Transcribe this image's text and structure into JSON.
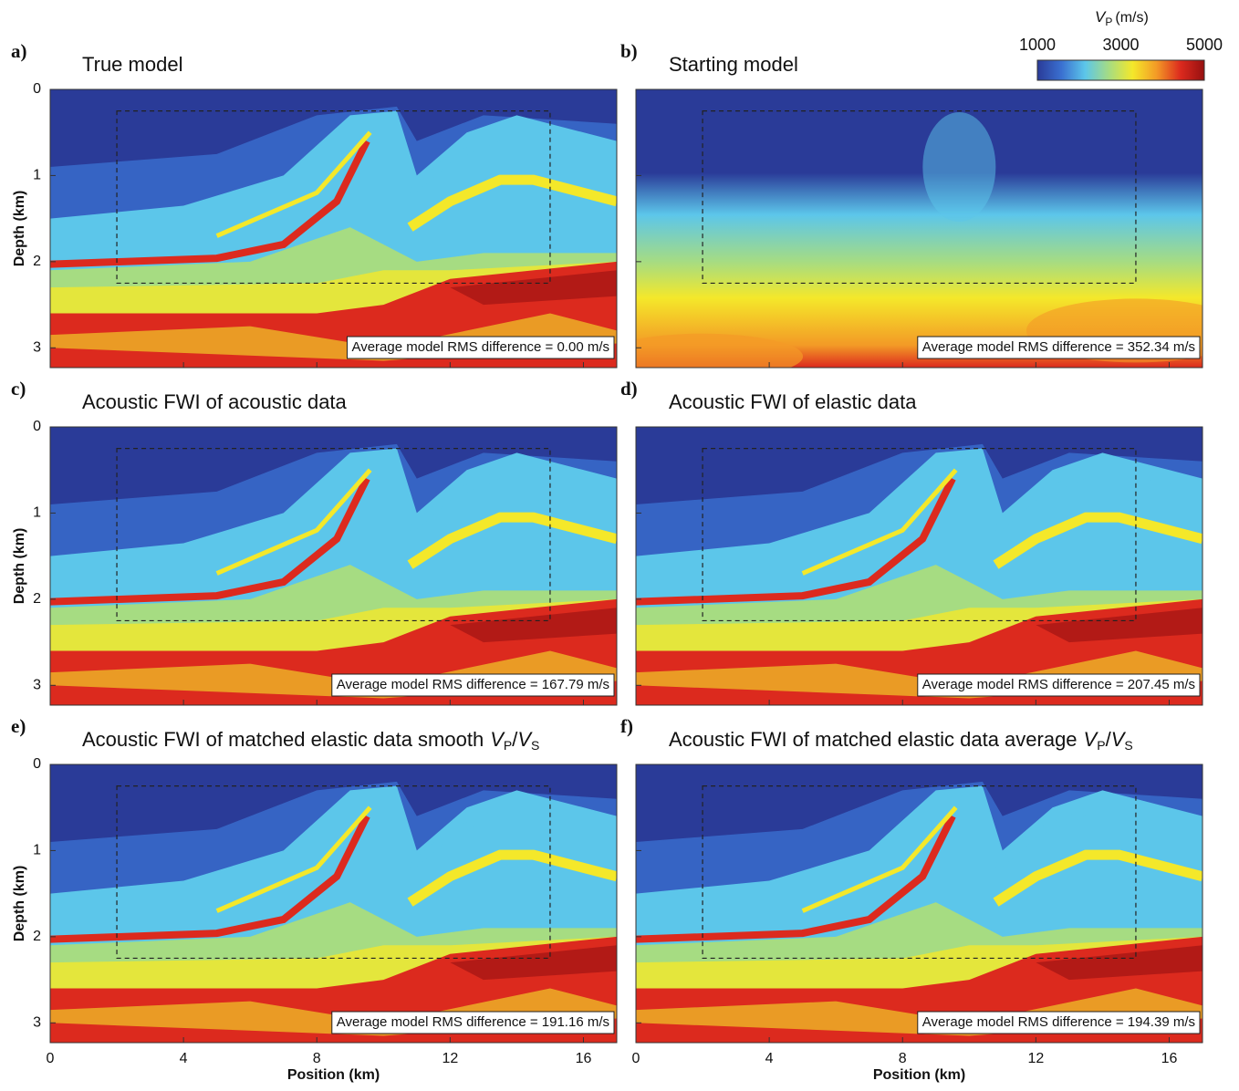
{
  "chart_data": [
    {
      "type": "heatmap",
      "label": "a)",
      "title": "True model",
      "annotation": "Average model RMS difference = 0.00 m/s",
      "xlim": [
        0,
        17
      ],
      "xticks": [
        0,
        4,
        8,
        12,
        16
      ],
      "ylim": [
        0,
        3.23
      ],
      "yticks": [
        0,
        1,
        2,
        3
      ],
      "ylabel": "Depth (km)",
      "box": {
        "x": [
          2,
          15
        ],
        "y": [
          0.25,
          2.25
        ]
      }
    },
    {
      "type": "heatmap",
      "label": "b)",
      "title": "Starting model",
      "annotation": "Average model RMS difference = 352.34 m/s",
      "xlim": [
        0,
        17
      ],
      "xticks": [
        0,
        4,
        8,
        12,
        16
      ],
      "ylim": [
        0,
        3.23
      ],
      "yticks": [
        0,
        1,
        2,
        3
      ],
      "box": {
        "x": [
          2,
          15
        ],
        "y": [
          0.25,
          2.25
        ]
      },
      "colorbar": {
        "symbol": [
          "V",
          "P"
        ],
        "unit": "(m/s)",
        "lim": [
          1000,
          5000
        ],
        "ticks": [
          1000,
          3000,
          5000
        ],
        "colors": [
          "#2a3b98",
          "#3a6fd0",
          "#5cc6ea",
          "#a6dc82",
          "#f4e82a",
          "#f39a26",
          "#dc2a1e",
          "#961010"
        ]
      }
    },
    {
      "type": "heatmap",
      "label": "c)",
      "title": "Acoustic FWI of acoustic data",
      "annotation": "Average model RMS difference = 167.79 m/s",
      "xlim": [
        0,
        17
      ],
      "xticks": [
        0,
        4,
        8,
        12,
        16
      ],
      "ylim": [
        0,
        3.23
      ],
      "yticks": [
        0,
        1,
        2,
        3
      ],
      "ylabel": "Depth (km)",
      "box": {
        "x": [
          2,
          15
        ],
        "y": [
          0.25,
          2.25
        ]
      }
    },
    {
      "type": "heatmap",
      "label": "d)",
      "title": "Acoustic FWI of elastic data",
      "annotation": "Average model RMS difference = 207.45 m/s",
      "xlim": [
        0,
        17
      ],
      "xticks": [
        0,
        4,
        8,
        12,
        16
      ],
      "ylim": [
        0,
        3.23
      ],
      "yticks": [
        0,
        1,
        2,
        3
      ],
      "box": {
        "x": [
          2,
          15
        ],
        "y": [
          0.25,
          2.25
        ]
      }
    },
    {
      "type": "heatmap",
      "label": "e)",
      "title": "Acoustic FWI of matched elastic data smooth",
      "title_ratio": [
        "V",
        "P",
        "/",
        "V",
        "S"
      ],
      "annotation": "Average model RMS difference = 191.16 m/s",
      "xlim": [
        0,
        17
      ],
      "xticks": [
        0,
        4,
        8,
        12,
        16
      ],
      "ylim": [
        0,
        3.23
      ],
      "yticks": [
        0,
        1,
        2,
        3
      ],
      "ylabel": "Depth (km)",
      "xlabel": "Position (km)",
      "box": {
        "x": [
          2,
          15
        ],
        "y": [
          0.25,
          2.25
        ]
      }
    },
    {
      "type": "heatmap",
      "label": "f)",
      "title": "Acoustic FWI of matched elastic data average",
      "title_ratio": [
        "V",
        "P",
        "/",
        "V",
        "S"
      ],
      "annotation": "Average model RMS difference = 194.39 m/s",
      "xlim": [
        0,
        17
      ],
      "xticks": [
        0,
        4,
        8,
        12,
        16
      ],
      "ylim": [
        0,
        3.23
      ],
      "yticks": [
        0,
        1,
        2,
        3
      ],
      "xlabel": "Position (km)",
      "box": {
        "x": [
          2,
          15
        ],
        "y": [
          0.25,
          2.25
        ]
      }
    }
  ]
}
